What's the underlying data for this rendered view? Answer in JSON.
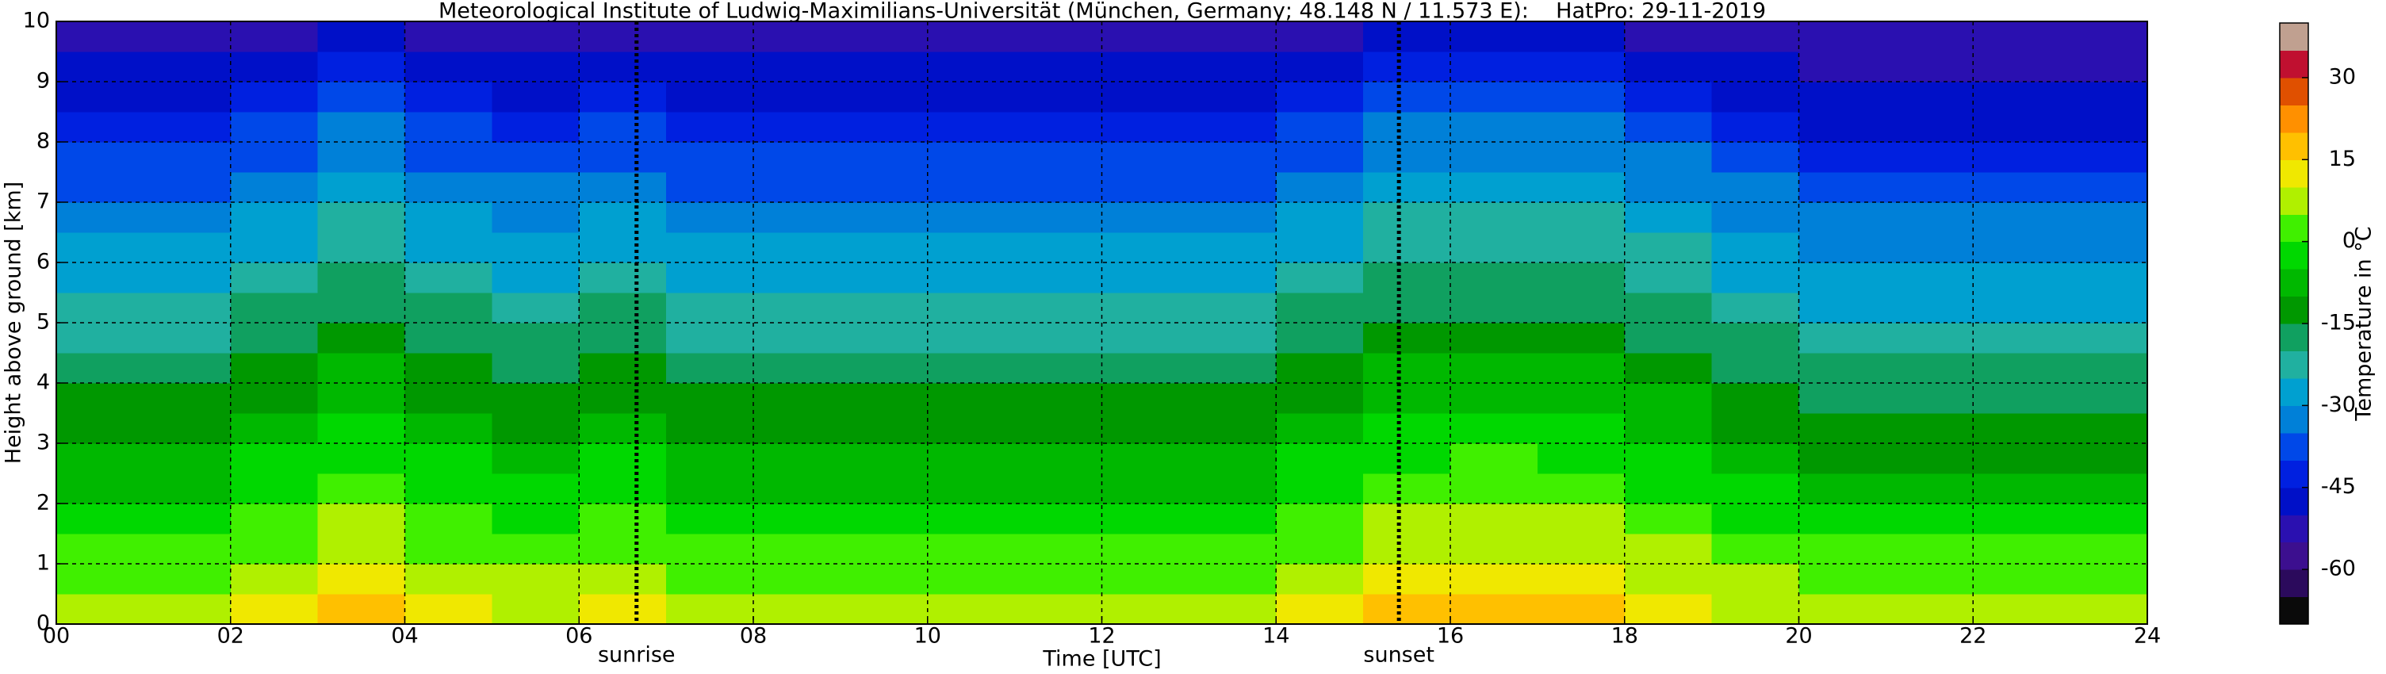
{
  "chart_data": {
    "type": "heatmap",
    "title": "Meteorological Institute of Ludwig-Maximilians-Universität (München, Germany; 48.148 N / 11.573 E):    HatPro: 29-11-2019",
    "xlabel": "Time [UTC]",
    "ylabel": "Height above ground [km]",
    "colorbar_label": "Temperature in °C",
    "xlim": [
      0,
      24
    ],
    "ylim": [
      0,
      10
    ],
    "zlim": [
      -70,
      40
    ],
    "xticks": [
      {
        "value": 0,
        "label": "00"
      },
      {
        "value": 2,
        "label": "02"
      },
      {
        "value": 4,
        "label": "04"
      },
      {
        "value": 6,
        "label": "06"
      },
      {
        "value": 8,
        "label": "08"
      },
      {
        "value": 10,
        "label": "10"
      },
      {
        "value": 12,
        "label": "12"
      },
      {
        "value": 14,
        "label": "14"
      },
      {
        "value": 16,
        "label": "16"
      },
      {
        "value": 18,
        "label": "18"
      },
      {
        "value": 20,
        "label": "20"
      },
      {
        "value": 22,
        "label": "22"
      },
      {
        "value": 24,
        "label": "24"
      }
    ],
    "yticks": [
      0,
      1,
      2,
      3,
      4,
      5,
      6,
      7,
      8,
      9,
      10
    ],
    "zticks": [
      -60,
      -45,
      -30,
      -15,
      0,
      15,
      30
    ],
    "grid": true,
    "annotations": [
      {
        "label": "sunrise",
        "x": 6.66
      },
      {
        "label": "sunset",
        "x": 15.41
      }
    ],
    "colorscale": [
      "#0a0a0a",
      "#2b0a5c",
      "#3c0f8f",
      "#2a10b0",
      "#0010c8",
      "#0020e0",
      "#0048e8",
      "#0080d8",
      "#00a0d0",
      "#20b0a0",
      "#10a060",
      "#009800",
      "#00b800",
      "#00d800",
      "#40f000",
      "#b0f000",
      "#f0e800",
      "#ffc000",
      "#ff9000",
      "#e05000",
      "#c01030",
      "#c0a090"
    ],
    "x": [
      0,
      1,
      2,
      3,
      4,
      5,
      6,
      7,
      8,
      9,
      10,
      11,
      12,
      13,
      14,
      15,
      16,
      17,
      18,
      19,
      20,
      21,
      22,
      23
    ],
    "y": [
      0,
      0.5,
      1,
      1.5,
      2,
      2.5,
      3,
      3.5,
      4,
      4.5,
      5,
      5.5,
      6,
      6.5,
      7,
      7.5,
      8,
      8.5,
      9,
      9.5
    ],
    "z": [
      [
        8,
        4,
        1,
        -3,
        -6,
        -9,
        -12,
        -15,
        -18,
        -21,
        -24,
        -27,
        -30,
        -33,
        -36,
        -39,
        -43,
        -47,
        -50,
        -53
      ],
      [
        8,
        4,
        1,
        -3,
        -6,
        -9,
        -12,
        -15,
        -18,
        -21,
        -24,
        -27,
        -30,
        -33,
        -36,
        -39,
        -43,
        -47,
        -50,
        -53
      ],
      [
        10,
        7,
        4,
        1,
        -2,
        -5,
        -8,
        -11,
        -14,
        -17,
        -20,
        -23,
        -26,
        -29,
        -32,
        -36,
        -40,
        -44,
        -48,
        -52
      ],
      [
        16,
        12,
        8,
        5,
        2,
        -1,
        -4,
        -7,
        -10,
        -13,
        -16,
        -19,
        -22,
        -25,
        -28,
        -31,
        -35,
        -39,
        -44,
        -49
      ],
      [
        10,
        7,
        4,
        1,
        -2,
        -5,
        -8,
        -11,
        -14,
        -17,
        -20,
        -23,
        -26,
        -29,
        -32,
        -36,
        -40,
        -44,
        -48,
        -52
      ],
      [
        9,
        5,
        2,
        -2,
        -5,
        -8,
        -11,
        -14,
        -17,
        -20,
        -23,
        -26,
        -29,
        -32,
        -35,
        -38,
        -42,
        -46,
        -49,
        -53
      ],
      [
        10,
        7,
        4,
        1,
        -2,
        -5,
        -8,
        -11,
        -14,
        -17,
        -20,
        -23,
        -26,
        -29,
        -32,
        -36,
        -40,
        -44,
        -48,
        -52
      ],
      [
        8,
        4,
        1,
        -3,
        -6,
        -9,
        -12,
        -15,
        -18,
        -21,
        -24,
        -27,
        -30,
        -33,
        -36,
        -39,
        -43,
        -47,
        -50,
        -53
      ],
      [
        8,
        4,
        1,
        -3,
        -6,
        -9,
        -12,
        -15,
        -18,
        -21,
        -24,
        -27,
        -30,
        -33,
        -36,
        -39,
        -43,
        -47,
        -50,
        -53
      ],
      [
        8,
        4,
        1,
        -3,
        -6,
        -9,
        -12,
        -15,
        -18,
        -21,
        -24,
        -27,
        -30,
        -33,
        -36,
        -39,
        -43,
        -47,
        -50,
        -53
      ],
      [
        8,
        4,
        1,
        -3,
        -6,
        -9,
        -12,
        -15,
        -18,
        -21,
        -24,
        -27,
        -30,
        -33,
        -36,
        -39,
        -43,
        -47,
        -50,
        -53
      ],
      [
        8,
        4,
        1,
        -3,
        -6,
        -9,
        -12,
        -15,
        -18,
        -21,
        -24,
        -27,
        -30,
        -33,
        -36,
        -39,
        -43,
        -47,
        -50,
        -53
      ],
      [
        8,
        4,
        1,
        -3,
        -6,
        -9,
        -12,
        -15,
        -18,
        -21,
        -24,
        -27,
        -30,
        -33,
        -36,
        -39,
        -43,
        -47,
        -50,
        -53
      ],
      [
        8,
        4,
        1,
        -3,
        -6,
        -9,
        -12,
        -15,
        -18,
        -21,
        -24,
        -27,
        -30,
        -33,
        -36,
        -39,
        -43,
        -47,
        -50,
        -53
      ],
      [
        10,
        7,
        4,
        1,
        -2,
        -5,
        -8,
        -11,
        -14,
        -17,
        -20,
        -23,
        -26,
        -29,
        -32,
        -36,
        -40,
        -44,
        -48,
        -52
      ],
      [
        16,
        12,
        8,
        5,
        2,
        -1,
        -4,
        -7,
        -10,
        -13,
        -16,
        -19,
        -22,
        -25,
        -28,
        -31,
        -35,
        -39,
        -44,
        -49
      ],
      [
        17,
        13,
        9,
        6,
        3,
        0,
        -3,
        -7,
        -10,
        -13,
        -16,
        -19,
        -22,
        -25,
        -28,
        -31,
        -35,
        -39,
        -44,
        -49
      ],
      [
        16,
        12,
        8,
        5,
        2,
        -1,
        -4,
        -7,
        -10,
        -13,
        -16,
        -19,
        -22,
        -25,
        -28,
        -31,
        -35,
        -39,
        -44,
        -49
      ],
      [
        12,
        9,
        6,
        2,
        -1,
        -4,
        -7,
        -10,
        -13,
        -16,
        -19,
        -22,
        -25,
        -28,
        -31,
        -35,
        -39,
        -43,
        -47,
        -51
      ],
      [
        9,
        5,
        2,
        -2,
        -5,
        -8,
        -11,
        -14,
        -17,
        -20,
        -23,
        -26,
        -29,
        -32,
        -35,
        -38,
        -42,
        -46,
        -49,
        -53
      ],
      [
        6,
        3,
        0,
        -4,
        -8,
        -11,
        -14,
        -17,
        -20,
        -23,
        -26,
        -29,
        -32,
        -35,
        -38,
        -42,
        -46,
        -49,
        -52,
        -55
      ],
      [
        6,
        3,
        0,
        -4,
        -8,
        -11,
        -14,
        -17,
        -20,
        -23,
        -26,
        -29,
        -32,
        -35,
        -38,
        -42,
        -46,
        -49,
        -52,
        -55
      ],
      [
        6,
        3,
        0,
        -4,
        -8,
        -11,
        -14,
        -17,
        -20,
        -23,
        -26,
        -29,
        -32,
        -35,
        -38,
        -42,
        -46,
        -49,
        -52,
        -55
      ],
      [
        6,
        3,
        0,
        -4,
        -8,
        -11,
        -14,
        -17,
        -20,
        -23,
        -26,
        -29,
        -32,
        -35,
        -38,
        -42,
        -46,
        -49,
        -52,
        -55
      ]
    ]
  }
}
